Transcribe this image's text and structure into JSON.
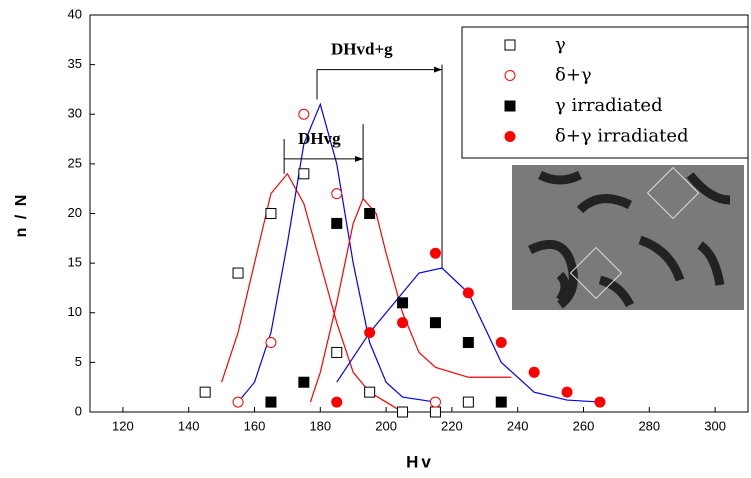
{
  "chart_data": {
    "type": "scatter",
    "x_label": "Hv",
    "y_label": "n / N",
    "xlim": [
      110,
      310
    ],
    "ylim": [
      0,
      40
    ],
    "xticks": [
      120,
      140,
      160,
      180,
      200,
      220,
      240,
      260,
      280,
      300
    ],
    "yticks": [
      0,
      5,
      10,
      15,
      20,
      25,
      30,
      35,
      40
    ],
    "series": [
      {
        "name": "γ",
        "color": "#000000",
        "marker": "square",
        "filled": false,
        "x": [
          145,
          155,
          165,
          175,
          185,
          195,
          205,
          215,
          225
        ],
        "values": [
          2,
          14,
          20,
          24,
          6,
          2,
          0,
          0,
          1
        ]
      },
      {
        "name": "δ+γ",
        "color": "#ff0000",
        "marker": "circle",
        "filled": false,
        "x": [
          155,
          165,
          175,
          185,
          215
        ],
        "values": [
          1,
          7,
          30,
          22,
          1
        ]
      },
      {
        "name": "γ irradiated",
        "color": "#000000",
        "marker": "square",
        "filled": true,
        "x": [
          165,
          175,
          185,
          195,
          205,
          215,
          225,
          235
        ],
        "values": [
          1,
          3,
          19,
          20,
          11,
          9,
          7,
          1
        ]
      },
      {
        "name": "δ+γ irradiated",
        "color": "#ff0000",
        "marker": "circle",
        "filled": true,
        "x": [
          185,
          195,
          205,
          215,
          225,
          235,
          245,
          255,
          265
        ],
        "values": [
          1,
          8,
          9,
          16,
          12,
          7,
          4,
          2,
          1
        ]
      }
    ],
    "fits": [
      {
        "color": "#ff0000",
        "x": [
          150,
          155,
          160,
          165,
          170,
          175,
          180,
          185,
          190,
          195,
          200,
          205
        ],
        "values": [
          3,
          8,
          15,
          22,
          24,
          21,
          15,
          9,
          4,
          2,
          1,
          0
        ]
      },
      {
        "color": "#0000ff",
        "x": [
          155,
          160,
          165,
          170,
          175,
          180,
          185,
          190,
          195,
          200,
          205,
          215
        ],
        "values": [
          1,
          3,
          8,
          17,
          27,
          31,
          25,
          15,
          7,
          3,
          1.5,
          1
        ]
      },
      {
        "color": "#ff0000",
        "x": [
          177,
          180,
          185,
          190,
          193,
          197,
          200,
          205,
          210,
          215,
          225,
          238
        ],
        "values": [
          1,
          4,
          11,
          19,
          21.5,
          20,
          16,
          10,
          6,
          4.5,
          3.5,
          3.5
        ]
      },
      {
        "color": "#0000ff",
        "x": [
          185,
          195,
          205,
          210,
          217,
          225,
          235,
          245,
          255,
          265
        ],
        "values": [
          3,
          8,
          12,
          14,
          14.5,
          12,
          5,
          2,
          1.2,
          1
        ]
      }
    ],
    "peaks": [
      {
        "x": 169,
        "y": [
          24,
          27.5
        ]
      },
      {
        "x": 179,
        "y": [
          31.5,
          34.5
        ]
      },
      {
        "x": 193,
        "y": [
          21.5,
          29
        ]
      },
      {
        "x": 217,
        "y": [
          14.5,
          35
        ]
      }
    ],
    "annotations": [
      {
        "text": "DHvg",
        "x": [
          169,
          193
        ],
        "y": 25.5
      },
      {
        "text": "DHvd+g",
        "x": [
          179,
          217
        ],
        "y": 34.5
      }
    ]
  }
}
